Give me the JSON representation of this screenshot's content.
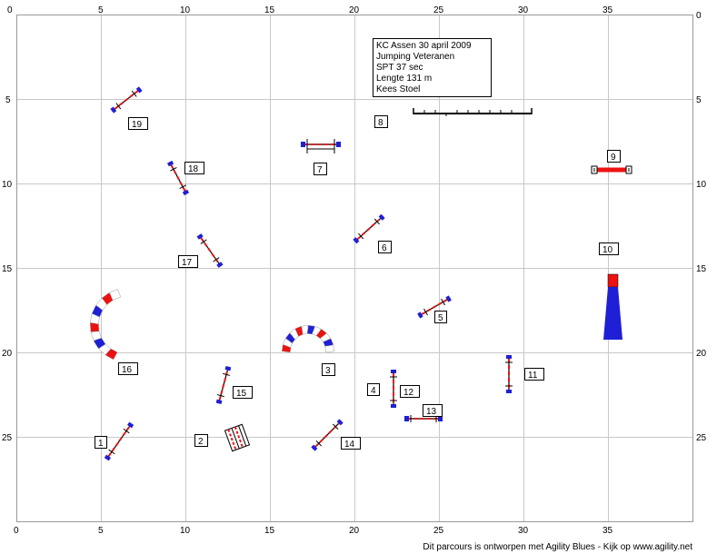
{
  "course_info": {
    "lines": [
      "KC Assen 30 april 2009",
      "Jumping Veteranen",
      "SPT 37 sec",
      "Lengte 131 m",
      "Kees Stoel"
    ]
  },
  "axes": {
    "x_ticks": [
      "0",
      "5",
      "10",
      "15",
      "20",
      "25",
      "30",
      "35"
    ],
    "y_ticks": [
      "0",
      "5",
      "10",
      "15",
      "20",
      "25"
    ]
  },
  "obstacles": [
    {
      "number": "1",
      "type": "jump"
    },
    {
      "number": "2",
      "type": "jump"
    },
    {
      "number": "3",
      "type": "tunnel"
    },
    {
      "number": "4",
      "type": "jump"
    },
    {
      "number": "5",
      "type": "jump"
    },
    {
      "number": "6",
      "type": "jump"
    },
    {
      "number": "7",
      "type": "jump"
    },
    {
      "number": "8",
      "type": "dogwalk"
    },
    {
      "number": "9",
      "type": "jump"
    },
    {
      "number": "10",
      "type": "chute"
    },
    {
      "number": "11",
      "type": "jump"
    },
    {
      "number": "12",
      "type": "jump"
    },
    {
      "number": "13",
      "type": "jump"
    },
    {
      "number": "14",
      "type": "jump"
    },
    {
      "number": "15",
      "type": "jump"
    },
    {
      "number": "16",
      "type": "tunnel"
    },
    {
      "number": "17",
      "type": "jump"
    },
    {
      "number": "18",
      "type": "jump"
    },
    {
      "number": "19",
      "type": "jump"
    }
  ],
  "colors": {
    "grid": "#c8c8c8",
    "blue": "#1f1fd6",
    "red": "#ee1111",
    "black": "#000000"
  },
  "footer": "Dit parcours is ontworpen met Agility Blues - Kijk op www.agility.net"
}
